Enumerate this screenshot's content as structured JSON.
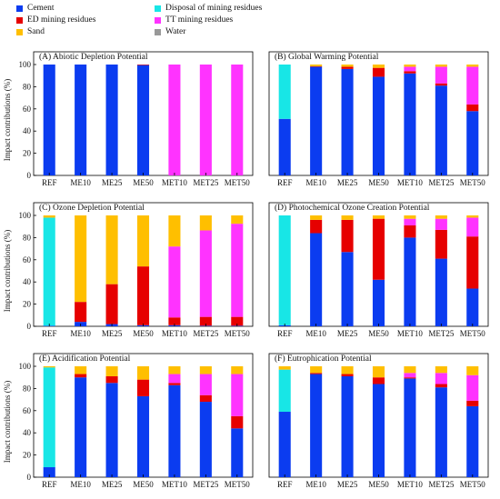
{
  "legend": [
    {
      "name": "Cement",
      "color": "#0b3cf0"
    },
    {
      "name": "Disposal of mining residues",
      "color": "#18e6e6"
    },
    {
      "name": "ED mining residues",
      "color": "#e60000"
    },
    {
      "name": "TT mining residues",
      "color": "#ff33ff"
    },
    {
      "name": "Sand",
      "color": "#ffbf00"
    },
    {
      "name": "Water",
      "color": "#999999"
    }
  ],
  "ylabel": "Impact contributions (%)",
  "chart_data": [
    {
      "type": "bar",
      "stacked": true,
      "title": "(A) Abiotic Depletion Potential",
      "categories": [
        "REF",
        "ME10",
        "ME25",
        "ME50",
        "MET10",
        "MET25",
        "MET50"
      ],
      "ylabel": "Impact contributions (%)",
      "ylim": [
        0,
        100
      ],
      "yticks": [
        0,
        20,
        40,
        60,
        80,
        100
      ],
      "show_ylabel": true,
      "series": [
        {
          "name": "Cement",
          "color": "#0b3cf0",
          "values": [
            100,
            100,
            100,
            99.5,
            0,
            0,
            0
          ]
        },
        {
          "name": "Disposal of mining residues",
          "color": "#18e6e6",
          "values": [
            0,
            0,
            0,
            0,
            0,
            0,
            0
          ]
        },
        {
          "name": "ED mining residues",
          "color": "#e60000",
          "values": [
            0,
            0,
            0,
            0.5,
            0,
            0,
            0
          ]
        },
        {
          "name": "TT mining residues",
          "color": "#ff33ff",
          "values": [
            0,
            0,
            0,
            0,
            100,
            100,
            100
          ]
        },
        {
          "name": "Sand",
          "color": "#ffbf00",
          "values": [
            0,
            0,
            0,
            0,
            0,
            0,
            0
          ]
        },
        {
          "name": "Water",
          "color": "#999999",
          "values": [
            0,
            0,
            0,
            0,
            0,
            0,
            0
          ]
        }
      ]
    },
    {
      "type": "bar",
      "stacked": true,
      "title": "(B) Global Warming Potential",
      "categories": [
        "REF",
        "ME10",
        "ME25",
        "ME50",
        "MET10",
        "MET25",
        "MET50"
      ],
      "ylabel": "",
      "ylim": [
        0,
        100
      ],
      "yticks": [],
      "show_ylabel": false,
      "series": [
        {
          "name": "Cement",
          "color": "#0b3cf0",
          "values": [
            51,
            98,
            96,
            89,
            92,
            81,
            58
          ]
        },
        {
          "name": "Disposal of mining residues",
          "color": "#18e6e6",
          "values": [
            49,
            0,
            0,
            0,
            0,
            0,
            0
          ]
        },
        {
          "name": "ED mining residues",
          "color": "#e60000",
          "values": [
            0,
            0.5,
            2,
            8,
            2,
            2,
            6
          ]
        },
        {
          "name": "TT mining residues",
          "color": "#ff33ff",
          "values": [
            0,
            0,
            0,
            0,
            4,
            15,
            34
          ]
        },
        {
          "name": "Sand",
          "color": "#ffbf00",
          "values": [
            0,
            1.5,
            2,
            3,
            2,
            2,
            2
          ]
        },
        {
          "name": "Water",
          "color": "#999999",
          "values": [
            0,
            0,
            0,
            0,
            0,
            0,
            0
          ]
        }
      ]
    },
    {
      "type": "bar",
      "stacked": true,
      "title": "(C) Ozone Depletion Potential",
      "categories": [
        "REF",
        "ME10",
        "ME25",
        "ME50",
        "MET10",
        "MET25",
        "MET50"
      ],
      "ylabel": "Impact contributions (%)",
      "ylim": [
        0,
        100
      ],
      "yticks": [
        0,
        20,
        40,
        60,
        80,
        100
      ],
      "show_ylabel": true,
      "series": [
        {
          "name": "Cement",
          "color": "#0b3cf0",
          "values": [
            0.5,
            4,
            2,
            1,
            1,
            0.5,
            0.5
          ]
        },
        {
          "name": "Disposal of mining residues",
          "color": "#18e6e6",
          "values": [
            97.5,
            0,
            0,
            0,
            0,
            0,
            0
          ]
        },
        {
          "name": "ED mining residues",
          "color": "#e60000",
          "values": [
            0,
            18,
            36,
            53,
            7,
            8,
            8
          ]
        },
        {
          "name": "TT mining residues",
          "color": "#ff33ff",
          "values": [
            0,
            0,
            0,
            0,
            64,
            78,
            84
          ]
        },
        {
          "name": "Sand",
          "color": "#ffbf00",
          "values": [
            2,
            78,
            62,
            46,
            28,
            13.5,
            7.5
          ]
        },
        {
          "name": "Water",
          "color": "#999999",
          "values": [
            0,
            0,
            0,
            0,
            0,
            0,
            0
          ]
        }
      ]
    },
    {
      "type": "bar",
      "stacked": true,
      "title": "(D) Photochemical Ozone Creation Potential",
      "categories": [
        "REF",
        "ME10",
        "ME25",
        "ME50",
        "MET10",
        "MET25",
        "MET50"
      ],
      "ylabel": "",
      "ylim": [
        0,
        100
      ],
      "yticks": [],
      "show_ylabel": false,
      "series": [
        {
          "name": "Cement",
          "color": "#0b3cf0",
          "values": [
            1,
            84,
            67,
            42,
            80,
            61,
            34
          ]
        },
        {
          "name": "Disposal of mining residues",
          "color": "#18e6e6",
          "values": [
            99,
            0,
            0,
            0,
            0,
            0,
            0
          ]
        },
        {
          "name": "ED mining residues",
          "color": "#e60000",
          "values": [
            0,
            12,
            29,
            55,
            11,
            26,
            47
          ]
        },
        {
          "name": "TT mining residues",
          "color": "#ff33ff",
          "values": [
            0,
            0,
            0,
            0,
            6,
            10,
            17
          ]
        },
        {
          "name": "Sand",
          "color": "#ffbf00",
          "values": [
            0,
            4,
            4,
            3,
            3,
            3,
            2
          ]
        },
        {
          "name": "Water",
          "color": "#999999",
          "values": [
            0,
            0,
            0,
            0,
            0,
            0,
            0
          ]
        }
      ]
    },
    {
      "type": "bar",
      "stacked": true,
      "title": "(E) Acidification Potential",
      "categories": [
        "REF",
        "ME10",
        "ME25",
        "ME50",
        "MET10",
        "MET25",
        "MET50"
      ],
      "ylabel": "Impact contributions (%)",
      "ylim": [
        0,
        100
      ],
      "yticks": [
        0,
        20,
        40,
        60,
        80,
        100
      ],
      "show_ylabel": true,
      "series": [
        {
          "name": "Cement",
          "color": "#0b3cf0",
          "values": [
            9,
            90,
            85,
            73,
            83,
            68,
            44
          ]
        },
        {
          "name": "Disposal of mining residues",
          "color": "#18e6e6",
          "values": [
            90,
            0,
            0,
            0,
            0,
            0,
            0
          ]
        },
        {
          "name": "ED mining residues",
          "color": "#e60000",
          "values": [
            0,
            3,
            6,
            15,
            2,
            6,
            11
          ]
        },
        {
          "name": "TT mining residues",
          "color": "#ff33ff",
          "values": [
            0,
            0,
            0,
            0,
            8,
            19,
            38
          ]
        },
        {
          "name": "Sand",
          "color": "#ffbf00",
          "values": [
            1,
            7,
            9,
            12,
            7,
            7,
            7
          ]
        },
        {
          "name": "Water",
          "color": "#999999",
          "values": [
            0,
            0,
            0,
            0,
            0,
            0,
            0
          ]
        }
      ]
    },
    {
      "type": "bar",
      "stacked": true,
      "title": "(F) Eutrophication Potential",
      "categories": [
        "REF",
        "ME10",
        "ME25",
        "ME50",
        "MET10",
        "MET25",
        "MET50"
      ],
      "ylabel": "",
      "ylim": [
        0,
        100
      ],
      "yticks": [],
      "show_ylabel": false,
      "series": [
        {
          "name": "Cement",
          "color": "#0b3cf0",
          "values": [
            59,
            93,
            91,
            84,
            89,
            81,
            64
          ]
        },
        {
          "name": "Disposal of mining residues",
          "color": "#18e6e6",
          "values": [
            38,
            0,
            0,
            0,
            0,
            0,
            0
          ]
        },
        {
          "name": "ED mining residues",
          "color": "#e60000",
          "values": [
            0,
            1,
            2,
            6,
            1,
            3,
            5
          ]
        },
        {
          "name": "TT mining residues",
          "color": "#ff33ff",
          "values": [
            0,
            0,
            0,
            0,
            4,
            10,
            23
          ]
        },
        {
          "name": "Sand",
          "color": "#ffbf00",
          "values": [
            3,
            6,
            7,
            10,
            6,
            6,
            8
          ]
        },
        {
          "name": "Water",
          "color": "#999999",
          "values": [
            0,
            0,
            0,
            0,
            0,
            0,
            0
          ]
        }
      ]
    }
  ]
}
